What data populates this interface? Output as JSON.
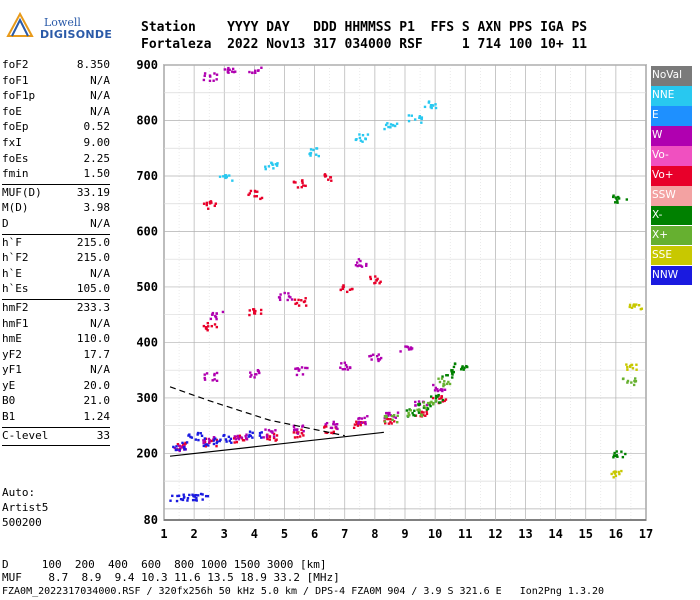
{
  "logo": {
    "line1": "Lowell",
    "line2": "DIGISONDE"
  },
  "header": {
    "line1": "Station    YYYY DAY   DDD HHMMSS P1  FFS S AXN PPS IGA PS",
    "line2": "Fortaleza  2022 Nov13 317 034000 RSF     1 714 100 10+ 11"
  },
  "params": [
    {
      "group": [
        [
          "foF2",
          "8.350"
        ],
        [
          "foF1",
          "N/A"
        ],
        [
          "foF1p",
          "N/A"
        ],
        [
          "foE",
          "N/A"
        ],
        [
          "foEp",
          "0.52"
        ],
        [
          "fxI",
          "9.00"
        ],
        [
          "foEs",
          "2.25"
        ],
        [
          "fmin",
          "1.50"
        ]
      ]
    },
    {
      "group": [
        [
          "MUF(D)",
          "33.19"
        ],
        [
          "M(D)",
          "3.98"
        ],
        [
          "D",
          "N/A"
        ]
      ]
    },
    {
      "group": [
        [
          "h`F",
          "215.0"
        ],
        [
          "h`F2",
          "215.0"
        ],
        [
          "h`E",
          "N/A"
        ],
        [
          "h`Es",
          "105.0"
        ]
      ]
    },
    {
      "group": [
        [
          "hmF2",
          "233.3"
        ],
        [
          "hmF1",
          "N/A"
        ],
        [
          "hmE",
          "110.0"
        ],
        [
          "yF2",
          "17.7"
        ],
        [
          "yF1",
          "N/A"
        ],
        [
          "yE",
          "20.0"
        ],
        [
          "B0",
          "21.0"
        ],
        [
          "B1",
          "1.24"
        ]
      ]
    },
    {
      "group": [
        [
          "C-level",
          "33"
        ]
      ]
    }
  ],
  "autoscaling": {
    "line1": "Auto:",
    "line2": "Artist5",
    "line3": "500200"
  },
  "legend": [
    {
      "label": "NoVal",
      "color": "#7a7a7a"
    },
    {
      "label": "NNE",
      "color": "#28c8f0"
    },
    {
      "label": "E",
      "color": "#1e90ff"
    },
    {
      "label": "W",
      "color": "#b000b0"
    },
    {
      "label": "Vo-",
      "color": "#f050c0"
    },
    {
      "label": "Vo+",
      "color": "#e8002a"
    },
    {
      "label": "SSW",
      "color": "#f3a2a2"
    },
    {
      "label": "X-",
      "color": "#008000"
    },
    {
      "label": "X+",
      "color": "#66b030"
    },
    {
      "label": "SSE",
      "color": "#c8c800"
    },
    {
      "label": "NNW",
      "color": "#1a1ae0"
    }
  ],
  "footer": {
    "line1": "D     100  200  400  600  800 1000 1500 3000 [km]",
    "line2": "MUF    8.7  8.9  9.4 10.3 11.6 13.5 18.9 33.2 [MHz]",
    "line3": "FZA0M_2022317034000.RSF / 320fx256h 50 kHz 5.0 km / DPS-4 FZA0M 904 / 3.9 S 321.6 E   Ion2Png 1.3.20"
  },
  "chart_data": {
    "type": "scatter",
    "xlim": [
      1,
      17
    ],
    "ylim": [
      80,
      900
    ],
    "x_ticks": [
      1,
      2,
      3,
      4,
      5,
      6,
      7,
      8,
      9,
      10,
      11,
      12,
      13,
      14,
      15,
      16,
      17
    ],
    "y_ticks": [
      80,
      200,
      300,
      400,
      500,
      600,
      700,
      800,
      900
    ],
    "grid": true,
    "series": [
      {
        "name": "Vo+",
        "points": [
          [
            1.6,
            215
          ],
          [
            2.5,
            222
          ],
          [
            3.5,
            228
          ],
          [
            4.5,
            232
          ],
          [
            5.5,
            238
          ],
          [
            6.5,
            244
          ],
          [
            7.5,
            252
          ],
          [
            8.5,
            262
          ],
          [
            9.5,
            276
          ],
          [
            10.1,
            300
          ],
          [
            2.5,
            430
          ],
          [
            4,
            455
          ],
          [
            5.5,
            475
          ],
          [
            7,
            500
          ],
          [
            8,
            515
          ],
          [
            2.5,
            650
          ],
          [
            4,
            668
          ],
          [
            5.5,
            688
          ],
          [
            6.5,
            700
          ]
        ]
      },
      {
        "name": "W",
        "points": [
          [
            1.5,
            212
          ],
          [
            2.5,
            225
          ],
          [
            3.5,
            232
          ],
          [
            4.5,
            238
          ],
          [
            5.5,
            245
          ],
          [
            6.5,
            252
          ],
          [
            7.5,
            262
          ],
          [
            8.5,
            270
          ],
          [
            9.5,
            290
          ],
          [
            10.1,
            320
          ],
          [
            2.5,
            340
          ],
          [
            4,
            345
          ],
          [
            5.5,
            350
          ],
          [
            7,
            360
          ],
          [
            8,
            375
          ],
          [
            9,
            390
          ],
          [
            2.5,
            880
          ],
          [
            3.2,
            890
          ],
          [
            4.0,
            895
          ],
          [
            2.7,
            450
          ],
          [
            5,
            485
          ],
          [
            7.5,
            545
          ]
        ]
      },
      {
        "name": "NNW",
        "points": [
          [
            1.5,
            215
          ],
          [
            2,
            232
          ],
          [
            2.5,
            222
          ],
          [
            3,
            228
          ],
          [
            4,
            235
          ],
          [
            1.4,
            122
          ],
          [
            1.8,
            122
          ],
          [
            2.2,
            122
          ]
        ]
      },
      {
        "name": "X-",
        "points": [
          [
            9.2,
            275
          ],
          [
            9.6,
            285
          ],
          [
            10,
            300
          ],
          [
            10.4,
            345
          ],
          [
            10.8,
            360
          ],
          [
            16.1,
            200
          ],
          [
            16.1,
            660
          ]
        ]
      },
      {
        "name": "X+",
        "points": [
          [
            8.5,
            265
          ],
          [
            9.3,
            275
          ],
          [
            9.8,
            290
          ],
          [
            10.3,
            330
          ],
          [
            16.4,
            330
          ]
        ]
      },
      {
        "name": "SSE",
        "points": [
          [
            16.0,
            165
          ],
          [
            16.5,
            360
          ],
          [
            16.6,
            465
          ]
        ]
      },
      {
        "name": "NNE",
        "points": [
          [
            3,
            700
          ],
          [
            4.5,
            720
          ],
          [
            6,
            745
          ],
          [
            7.5,
            770
          ],
          [
            8.5,
            790
          ],
          [
            9.3,
            805
          ],
          [
            9.8,
            830
          ]
        ]
      }
    ],
    "trace_lines": [
      {
        "name": "solid",
        "points": [
          [
            1.2,
            195
          ],
          [
            8.3,
            238
          ]
        ]
      },
      {
        "name": "dashed",
        "points": [
          [
            1.2,
            320
          ],
          [
            2.5,
            295
          ],
          [
            4.5,
            260
          ],
          [
            7,
            232
          ]
        ]
      }
    ]
  }
}
